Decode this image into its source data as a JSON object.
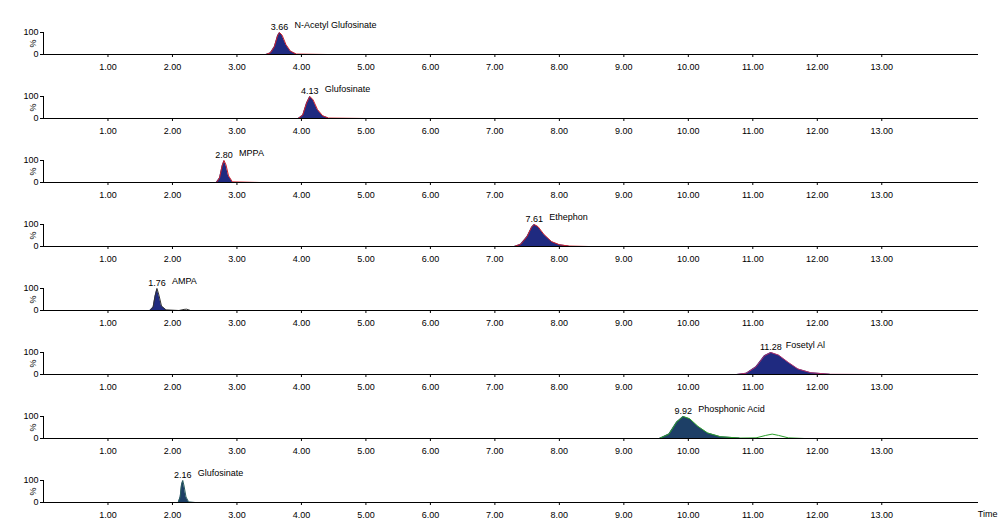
{
  "chart_data": {
    "type": "area",
    "xlim": [
      0,
      14.5
    ],
    "xticks": [
      {
        "value": 1,
        "label": "1.00"
      },
      {
        "value": 2,
        "label": "2.00"
      },
      {
        "value": 3,
        "label": "3.00"
      },
      {
        "value": 4,
        "label": "4.00"
      },
      {
        "value": 5,
        "label": "5.00"
      },
      {
        "value": 6,
        "label": "6.00"
      },
      {
        "value": 7,
        "label": "7.00"
      },
      {
        "value": 8,
        "label": "8.00"
      },
      {
        "value": 9,
        "label": "9.00"
      },
      {
        "value": 10,
        "label": "10.00"
      },
      {
        "value": 11,
        "label": "11.00"
      },
      {
        "value": 12,
        "label": "12.00"
      },
      {
        "value": 13,
        "label": "13.00"
      }
    ],
    "xlabel": "Time",
    "ylim": [
      0,
      100
    ],
    "yticks": [
      0,
      100
    ],
    "ylabel": "%",
    "panels": [
      {
        "name": "N-Acetyl Glufosinate",
        "peak": {
          "x": 3.66,
          "label": "3.66"
        },
        "series": [
          {
            "type": "area",
            "color": "#1f2a80",
            "x": [
              3.45,
              3.52,
              3.58,
              3.63,
              3.66,
              3.7,
              3.76,
              3.83,
              3.92
            ],
            "values": [
              0,
              8,
              35,
              85,
              100,
              88,
              45,
              15,
              2
            ]
          },
          {
            "type": "line",
            "color": "#d0202a",
            "x": [
              2.4,
              3.45,
              3.52,
              3.58,
              3.63,
              3.66,
              3.7,
              3.76,
              3.83,
              3.92,
              4.4
            ],
            "values": [
              0,
              0,
              8,
              35,
              85,
              100,
              88,
              45,
              15,
              2,
              0
            ]
          }
        ]
      },
      {
        "name": "Glufosinate",
        "peak": {
          "x": 4.13,
          "label": "4.13"
        },
        "series": [
          {
            "type": "area",
            "color": "#1f2a80",
            "x": [
              3.95,
              4.02,
              4.08,
              4.13,
              4.18,
              4.25,
              4.33,
              4.42
            ],
            "values": [
              0,
              15,
              70,
              100,
              85,
              40,
              12,
              2
            ]
          },
          {
            "type": "line",
            "color": "#d0202a",
            "x": [
              3.25,
              3.95,
              4.02,
              4.08,
              4.13,
              4.18,
              4.25,
              4.33,
              4.42,
              5.0
            ],
            "values": [
              0,
              0,
              15,
              70,
              100,
              85,
              40,
              12,
              2,
              0
            ]
          }
        ]
      },
      {
        "name": "MPPA",
        "peak": {
          "x": 2.8,
          "label": "2.80"
        },
        "series": [
          {
            "type": "area",
            "color": "#1f2a80",
            "x": [
              2.68,
              2.73,
              2.77,
              2.8,
              2.83,
              2.87,
              2.93
            ],
            "values": [
              0,
              20,
              75,
              100,
              80,
              30,
              3
            ]
          },
          {
            "type": "line",
            "color": "#d0202a",
            "x": [
              2.25,
              2.68,
              2.73,
              2.77,
              2.8,
              2.83,
              2.87,
              2.93,
              3.35
            ],
            "values": [
              0,
              0,
              20,
              75,
              100,
              80,
              30,
              3,
              0
            ]
          }
        ]
      },
      {
        "name": "Ethephon",
        "peak": {
          "x": 7.61,
          "label": "7.61"
        },
        "series": [
          {
            "type": "area",
            "color": "#1f2a80",
            "x": [
              7.3,
              7.4,
              7.5,
              7.57,
              7.61,
              7.67,
              7.76,
              7.88,
              8.0,
              8.15
            ],
            "values": [
              0,
              10,
              45,
              88,
              100,
              90,
              55,
              22,
              8,
              2
            ]
          },
          {
            "type": "line",
            "color": "#d0202a",
            "x": [
              6.85,
              7.3,
              7.4,
              7.5,
              7.57,
              7.61,
              7.67,
              7.76,
              7.88,
              8.0,
              8.15,
              8.45
            ],
            "values": [
              0,
              0,
              10,
              45,
              88,
              100,
              90,
              55,
              22,
              8,
              2,
              0
            ]
          }
        ]
      },
      {
        "name": "AMPA",
        "peak": {
          "x": 1.76,
          "label": "1.76"
        },
        "series": [
          {
            "type": "area",
            "color": "#1f2a80",
            "x": [
              1.65,
              1.7,
              1.73,
              1.76,
              1.79,
              1.83,
              1.9
            ],
            "values": [
              0,
              15,
              65,
              100,
              70,
              20,
              3
            ]
          },
          {
            "type": "line",
            "color": "#333333",
            "x": [
              1.0,
              1.65,
              1.7,
              1.73,
              1.76,
              1.79,
              1.83,
              1.9,
              2.1,
              2.18,
              2.22,
              2.28,
              2.35
            ],
            "values": [
              0,
              0,
              15,
              65,
              100,
              70,
              20,
              3,
              0,
              5,
              6,
              0,
              0
            ]
          }
        ]
      },
      {
        "name": "Fosetyl Al",
        "peak": {
          "x": 11.28,
          "label": "11.28"
        },
        "series": [
          {
            "type": "area",
            "color": "#1f2a80",
            "x": [
              10.75,
              10.9,
              11.05,
              11.18,
              11.28,
              11.4,
              11.55,
              11.7,
              11.9,
              12.2
            ],
            "values": [
              0,
              6,
              35,
              85,
              100,
              88,
              55,
              25,
              8,
              1
            ]
          },
          {
            "type": "line",
            "color": "#b0306a",
            "x": [
              9.6,
              10.75,
              10.9,
              11.05,
              11.18,
              11.28,
              11.4,
              11.55,
              11.7,
              11.9,
              12.2,
              13.0
            ],
            "values": [
              0,
              0,
              6,
              35,
              85,
              100,
              88,
              55,
              25,
              8,
              1,
              0
            ]
          }
        ]
      },
      {
        "name": "Phosphonic Acid",
        "peak": {
          "x": 9.92,
          "label": "9.92"
        },
        "series": [
          {
            "type": "area",
            "color": "#1d3f66",
            "x": [
              9.55,
              9.7,
              9.82,
              9.92,
              10.02,
              10.15,
              10.3,
              10.5,
              10.8
            ],
            "values": [
              0,
              20,
              75,
              100,
              90,
              55,
              25,
              8,
              2
            ]
          },
          {
            "type": "line",
            "color": "#2ca02c",
            "x": [
              0.6,
              9.55,
              9.7,
              9.82,
              9.92,
              10.02,
              10.15,
              10.3,
              10.5,
              10.8,
              11.05,
              11.2,
              11.3,
              11.4,
              11.55,
              11.8,
              14.5
            ],
            "values": [
              0,
              0,
              20,
              75,
              100,
              90,
              55,
              25,
              8,
              2,
              3,
              14,
              20,
              14,
              3,
              0,
              0
            ]
          }
        ]
      },
      {
        "name": "Glufosinate",
        "peak": {
          "x": 2.16,
          "label": "2.16"
        },
        "series": [
          {
            "type": "area",
            "color": "#1d3f66",
            "x": [
              2.09,
              2.12,
              2.14,
              2.16,
              2.18,
              2.21,
              2.25
            ],
            "values": [
              0,
              25,
              80,
              100,
              75,
              25,
              3
            ]
          },
          {
            "type": "line",
            "color": "#2b5f5f",
            "x": [
              2.0,
              2.09,
              2.12,
              2.14,
              2.16,
              2.18,
              2.21,
              2.25,
              2.35
            ],
            "values": [
              0,
              0,
              25,
              80,
              100,
              75,
              25,
              3,
              0
            ]
          }
        ]
      }
    ]
  }
}
